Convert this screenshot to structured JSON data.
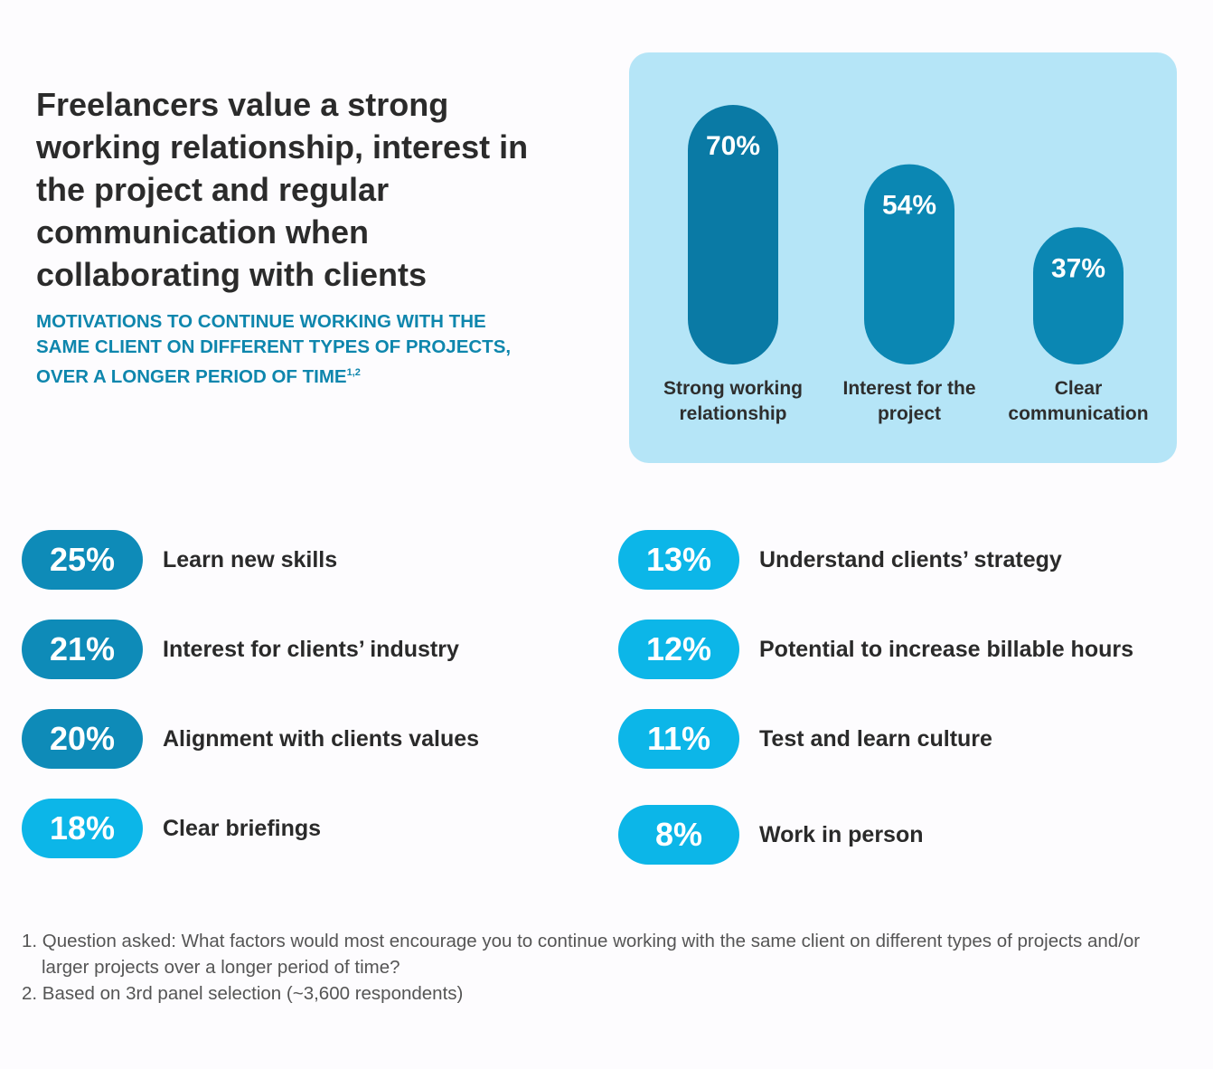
{
  "title": "Freelancers value a strong working relationship, interest in  the project and regular communication when collaborating with clients",
  "subtitle": "MOTIVATIONS TO CONTINUE WORKING WITH THE SAME CLIENT ON DIFFERENT TYPES OF PROJECTS, OVER A LONGER PERIOD OF TIME",
  "subtitle_sup": "1,2",
  "colors": {
    "bar_dark": "#0a7aa5",
    "bar_mid": "#0b87b3",
    "panel_bg": "#b5e5f7",
    "pill_dark": "#0e8bb8",
    "pill_light": "#0cb6e8",
    "subtitle": "#0e86ad"
  },
  "chart_data": [
    {
      "type": "bar",
      "categories": [
        "Strong working relationship",
        "Interest for the project",
        "Clear communication"
      ],
      "values": [
        70,
        54,
        37
      ],
      "value_labels": [
        "70%",
        "54%",
        "37%"
      ],
      "ylim": [
        0,
        100
      ]
    },
    {
      "type": "table",
      "rows": [
        {
          "value": 25,
          "label_value": "25%",
          "label": "Learn new skills"
        },
        {
          "value": 21,
          "label_value": "21%",
          "label": "Interest for clients’ industry"
        },
        {
          "value": 20,
          "label_value": "20%",
          "label": "Alignment with clients values"
        },
        {
          "value": 18,
          "label_value": "18%",
          "label": "Clear briefings"
        },
        {
          "value": 13,
          "label_value": "13%",
          "label": "Understand clients’ strategy"
        },
        {
          "value": 12,
          "label_value": "12%",
          "label": "Potential to increase billable hours"
        },
        {
          "value": 11,
          "label_value": "11%",
          "label": "Test and learn culture"
        },
        {
          "value": 8,
          "label_value": "8%",
          "label": "Work in person"
        }
      ]
    }
  ],
  "footnotes": [
    "1. Question asked: What factors would most encourage you to continue working with the same client on different types of projects and/or larger projects over a longer period of time?",
    "2. Based on 3rd panel selection (~3,600 respondents)"
  ]
}
